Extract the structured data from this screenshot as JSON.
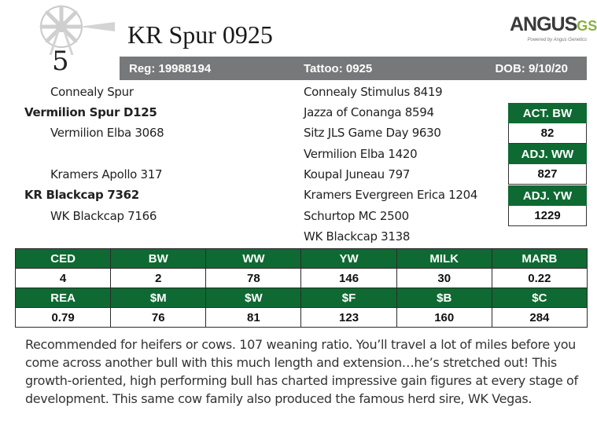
{
  "lot_number": "5",
  "animal_name": "KR Spur 0925",
  "logo": {
    "brand": "ANGUS",
    "suffix": "GS",
    "tagline": "Powered by Angus Genetics"
  },
  "ids": {
    "reg": "Reg: 19988194",
    "tattoo": "Tattoo: 0925",
    "dob": "DOB: 9/10/20"
  },
  "pedigree": {
    "sire_sire": "Connealy Spur",
    "sire": "Vermilion Spur D125",
    "sire_dam": "Vermilion Elba 3068",
    "dam_sire": "Kramers Apollo 317",
    "dam": "KR Blackcap 7362",
    "dam_dam": "WK Blackcap 7166",
    "g1": "Connealy Stimulus 8419",
    "g2": "Jazza of Conanga 8594",
    "g3": "Sitz JLS Game Day 9630",
    "g4": "Vermilion Elba 1420",
    "g5": "Koupal Juneau 797",
    "g6": "Kramers Evergreen Erica 1204",
    "g7": "Schurtop MC 2500",
    "g8": "WK Blackcap 3138"
  },
  "actuals": [
    {
      "label": "ACT. BW",
      "value": "82"
    },
    {
      "label": "ADJ. WW",
      "value": "827"
    },
    {
      "label": "ADJ. YW",
      "value": "1229"
    }
  ],
  "epd_rows": [
    {
      "headers": [
        "CED",
        "BW",
        "WW",
        "YW",
        "MILK",
        "MARB"
      ],
      "values": [
        "4",
        "2",
        "78",
        "146",
        "30",
        "0.22"
      ]
    },
    {
      "headers": [
        "REA",
        "$M",
        "$W",
        "$F",
        "$B",
        "$C"
      ],
      "values": [
        "0.79",
        "76",
        "81",
        "123",
        "160",
        "284"
      ]
    }
  ],
  "comment": "Recommended for heifers or cows. 107 weaning ratio. You’ll travel a lot of miles before you come across another bull with this much length and extension…he’s stretched out! This growth-oriented, high performing bull has charted impressive gain figures at every stage of development. This same cow family also produced the famous herd sire, WK Vegas.",
  "colors": {
    "green": "#0e6a32",
    "bar_gray": "#777879",
    "gs_green": "#8db03e"
  },
  "icons": [
    "windmill-icon"
  ]
}
